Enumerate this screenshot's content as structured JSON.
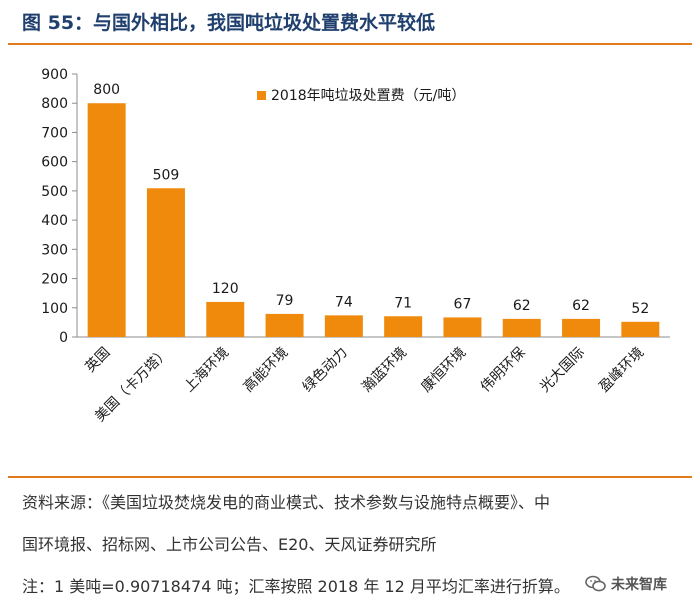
{
  "figure": {
    "title": "图 55：与国外相比，我国吨垃圾处置费水平较低"
  },
  "chart_data": {
    "type": "bar",
    "categories": [
      "英国",
      "美国（卡万塔）",
      "上海环境",
      "高能环境",
      "绿色动力",
      "瀚蓝环境",
      "康恒环境",
      "伟明环保",
      "光大国际",
      "盈峰环境"
    ],
    "series": [
      {
        "name": "2018年吨垃圾处置费（元/吨）",
        "values": [
          800,
          509,
          120,
          79,
          74,
          71,
          67,
          62,
          62,
          52
        ],
        "labels": [
          "800",
          "509",
          "120",
          "79",
          "74",
          "71",
          "67",
          "62",
          "62",
          "52"
        ]
      }
    ],
    "yticks": [
      "0",
      "100",
      "200",
      "300",
      "400",
      "500",
      "600",
      "700",
      "800",
      "900"
    ],
    "ylim": [
      0,
      900
    ],
    "title": "",
    "xlabel": "",
    "ylabel": "",
    "legend_position": "top-right",
    "grid": false,
    "bar_color": "#f08a0c"
  },
  "notes": {
    "source_line1": "资料来源：《美国垃圾焚烧发电的商业模式、技术参数与设施特点概要》、中",
    "source_line2": "国环境报、招标网、上市公司公告、E20、天风证券研究所",
    "footnote": "注：1 美吨=0.90718474 吨；汇率按照 2018 年 12 月平均汇率进行折算。"
  },
  "watermark": {
    "text": "未来智库",
    "icon": "wechat-icon"
  },
  "colors": {
    "title": "#1f3f6e",
    "accent_rule": "#e27b1d",
    "bar": "#f08a0c"
  }
}
